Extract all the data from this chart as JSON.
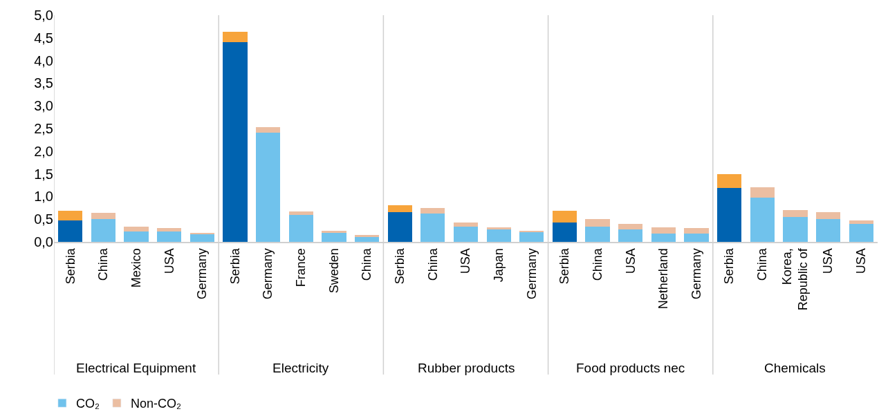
{
  "chart_data": {
    "type": "bar",
    "stacked": true,
    "categories": [
      "Serbia",
      "China",
      "Mexico",
      "USA",
      "Germany",
      "Serbia",
      "Germany",
      "France",
      "Sweden",
      "China",
      "Serbia",
      "China",
      "USA",
      "Japan",
      "Germany",
      "Serbia",
      "China",
      "USA",
      "Netherland",
      "Germany",
      "Serbia",
      "China",
      "Korea, Republic of",
      "USA",
      "USA"
    ],
    "annotations": [
      "Electrical Equipment",
      "Electricity",
      "Rubber products",
      "Food products nec",
      "Chemicals"
    ],
    "series": [
      {
        "name": "CO₂",
        "color": "#70c2ec",
        "colors": [
          "#0063b0",
          "#70c2ec",
          "#70c2ec",
          "#70c2ec",
          "#70c2ec",
          "#0063b0",
          "#70c2ec",
          "#70c2ec",
          "#70c2ec",
          "#70c2ec",
          "#0063b0",
          "#70c2ec",
          "#70c2ec",
          "#70c2ec",
          "#70c2ec",
          "#0063b0",
          "#70c2ec",
          "#70c2ec",
          "#70c2ec",
          "#70c2ec",
          "#0063b0",
          "#70c2ec",
          "#70c2ec",
          "#70c2ec",
          "#70c2ec"
        ],
        "values": [
          0.47,
          0.5,
          0.23,
          0.23,
          0.17,
          4.41,
          2.41,
          0.59,
          0.2,
          0.11,
          0.66,
          0.63,
          0.34,
          0.27,
          0.21,
          0.42,
          0.33,
          0.27,
          0.18,
          0.18,
          1.19,
          0.97,
          0.55,
          0.5,
          0.39
        ]
      },
      {
        "name": "Non-CO₂",
        "color": "#ebbea2",
        "colors": [
          "#f7a43b",
          "#ebbea2",
          "#ebbea2",
          "#ebbea2",
          "#ebbea2",
          "#f7a43b",
          "#ebbea2",
          "#ebbea2",
          "#ebbea2",
          "#ebbea2",
          "#f7a43b",
          "#ebbea2",
          "#ebbea2",
          "#ebbea2",
          "#ebbea2",
          "#f7a43b",
          "#ebbea2",
          "#ebbea2",
          "#ebbea2",
          "#ebbea2",
          "#f7a43b",
          "#ebbea2",
          "#ebbea2",
          "#ebbea2",
          "#ebbea2"
        ],
        "values": [
          0.22,
          0.14,
          0.1,
          0.07,
          0.03,
          0.22,
          0.12,
          0.08,
          0.04,
          0.04,
          0.15,
          0.12,
          0.08,
          0.05,
          0.04,
          0.26,
          0.17,
          0.12,
          0.14,
          0.12,
          0.3,
          0.24,
          0.15,
          0.15,
          0.09
        ]
      }
    ],
    "ylim": [
      0,
      5
    ],
    "yticks": [
      {
        "value": 0,
        "label": "0,0"
      },
      {
        "value": 0.5,
        "label": "0,5"
      },
      {
        "value": 1,
        "label": "1,0"
      },
      {
        "value": 1.5,
        "label": "1,5"
      },
      {
        "value": 2,
        "label": "2,0"
      },
      {
        "value": 2.5,
        "label": "2,5"
      },
      {
        "value": 3,
        "label": "3,0"
      },
      {
        "value": 3.5,
        "label": "3,5"
      },
      {
        "value": 4,
        "label": "4,0"
      },
      {
        "value": 4.5,
        "label": "4,5"
      },
      {
        "value": 5,
        "label": "5,0"
      }
    ],
    "legend": "bottom left"
  }
}
